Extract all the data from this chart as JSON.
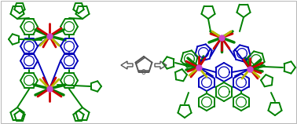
{
  "bg": "#ffffff",
  "g": "#008000",
  "m": "#cc44cc",
  "y": "#bbbb00",
  "r": "#cc0000",
  "b": "#0000bb",
  "k": "#111111",
  "fc": "#555555",
  "ac": "#555555",
  "border": "#aaaaaa",
  "lw": 1.4,
  "lw2": 2.0,
  "lw3": 2.5,
  "figw": 3.78,
  "figh": 1.58,
  "dpi": 100
}
